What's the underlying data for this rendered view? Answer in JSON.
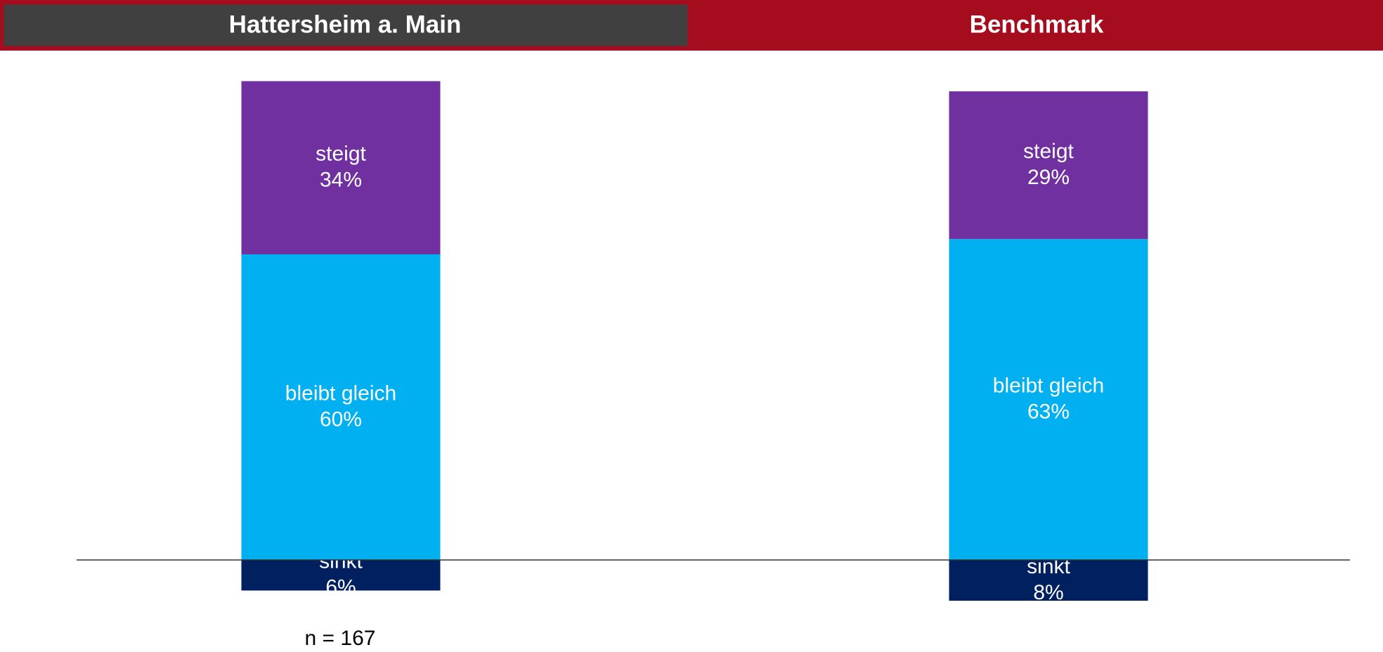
{
  "chart_data": {
    "type": "diverging_stacked_bar",
    "categories": [
      "Hattersheim a. Main",
      "Benchmark"
    ],
    "series": [
      {
        "name": "sinkt",
        "color": "#002060",
        "values": [
          6,
          8
        ],
        "value_labels": [
          "6%",
          "8%"
        ]
      },
      {
        "name": "bleibt gleich",
        "color": "#00b0f0",
        "values": [
          60,
          63
        ],
        "value_labels": [
          "60%",
          "63%"
        ]
      },
      {
        "name": "steigt",
        "color": "#7030a0",
        "values": [
          34,
          29
        ],
        "value_labels": [
          "34%",
          "29%"
        ]
      }
    ],
    "annotations": [
      "n = 167"
    ]
  }
}
